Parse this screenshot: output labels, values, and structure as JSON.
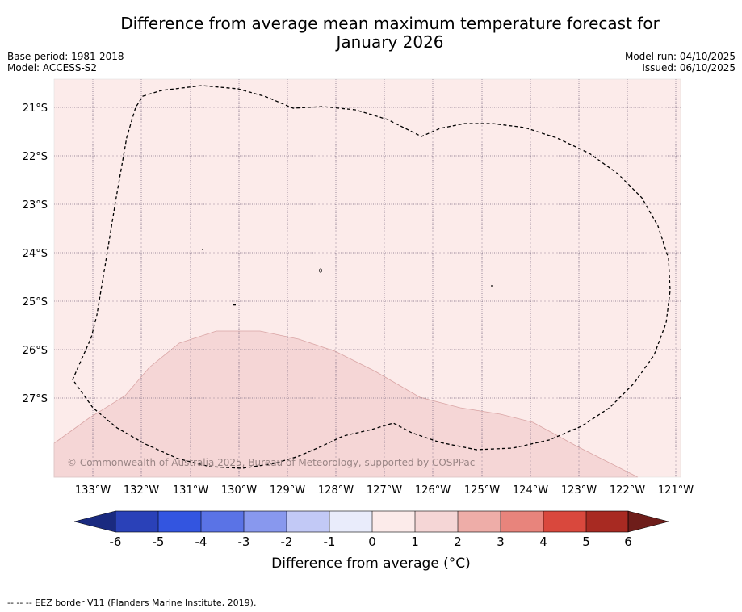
{
  "title": "Difference from average mean maximum temperature forecast for January 2026",
  "title_lines": [
    "Difference from average mean maximum temperature forecast for",
    "January 2026"
  ],
  "meta_left": [
    "Base period: 1981-2018",
    "Model: ACCESS-S2"
  ],
  "meta_right": [
    "Model run: 04/10/2025",
    "Issued: 06/10/2025"
  ],
  "map": {
    "lon_labels": [
      "133°W",
      "132°W",
      "131°W",
      "130°W",
      "129°W",
      "128°W",
      "127°W",
      "126°W",
      "125°W",
      "124°W",
      "123°W",
      "122°W",
      "121°W"
    ],
    "lat_labels": [
      "21°S",
      "22°S",
      "23°S",
      "24°S",
      "25°S",
      "26°S",
      "27°S"
    ],
    "copyright": "© Commonwealth of Australia 2025, Bureau of Meteorology, supported by COSPPac",
    "background_category": "0 to 1",
    "lower_region_category": "1 to 2"
  },
  "colorbar": {
    "ticks": [
      "-6",
      "-5",
      "-4",
      "-3",
      "-2",
      "-1",
      "0",
      "1",
      "2",
      "3",
      "4",
      "5",
      "6"
    ],
    "colors": [
      "#1a2a80",
      "#2a41b8",
      "#3355e0",
      "#5a73e6",
      "#8898ee",
      "#c2c9f6",
      "#e9ecfb",
      "#fcebea",
      "#f5d6d6",
      "#eeada8",
      "#e8847c",
      "#d9483d",
      "#a82a22",
      "#6e1d1a"
    ],
    "label": "Difference from average (°C)"
  },
  "footnote": "-- -- -- EEZ border V11 (Flanders Marine Institute, 2019)."
}
